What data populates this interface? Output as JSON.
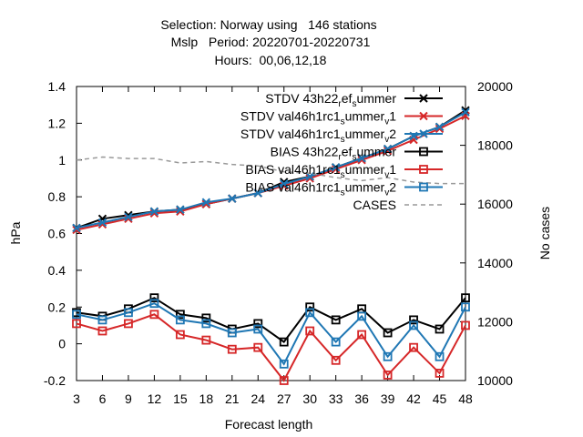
{
  "chart_data": {
    "type": "line",
    "title_lines": [
      "Selection: Norway using   146 stations",
      "Mslp   Period: 20220701-20220731",
      "Hours:  00,06,12,18"
    ],
    "xlabel": "Forecast length",
    "ylabel": "hPa",
    "y2label": "No cases",
    "x": [
      3,
      6,
      9,
      12,
      15,
      18,
      21,
      24,
      27,
      30,
      33,
      36,
      39,
      42,
      45,
      48
    ],
    "ylim": [
      -0.2,
      1.4
    ],
    "yticks": [
      "-0.2",
      "0",
      "0.2",
      "0.4",
      "0.6",
      "0.8",
      "1",
      "1.2",
      "1.4"
    ],
    "y2lim": [
      10000,
      20000
    ],
    "y2ticks": [
      "10000",
      "12000",
      "14000",
      "16000",
      "18000",
      "20000"
    ],
    "legend_position": "top-right",
    "series": [
      {
        "name": "STDV 43h22_ref_summer",
        "label_base": "STDV 43h22",
        "label_parts": [
          [
            "r",
            "sub"
          ],
          [
            "ef",
            "base"
          ],
          [
            "s",
            "sub"
          ],
          [
            "ummer",
            "base"
          ]
        ],
        "color": "#000000",
        "marker": "x",
        "axis": "y1",
        "values": [
          0.63,
          0.68,
          0.7,
          0.72,
          0.73,
          0.76,
          0.79,
          0.82,
          0.88,
          0.91,
          0.96,
          1.01,
          1.06,
          1.13,
          1.18,
          1.27
        ]
      },
      {
        "name": "STDV val46h1rc1_summer_v1",
        "label_base": "STDV val46h1rc1",
        "label_parts": [
          [
            "s",
            "sub"
          ],
          [
            "ummer",
            "base"
          ],
          [
            "v",
            "sub"
          ],
          [
            "1",
            "base"
          ]
        ],
        "color": "#d62728",
        "marker": "x",
        "axis": "y1",
        "values": [
          0.62,
          0.65,
          0.68,
          0.71,
          0.72,
          0.76,
          0.79,
          0.82,
          0.86,
          0.9,
          0.95,
          1.0,
          1.05,
          1.11,
          1.17,
          1.24
        ]
      },
      {
        "name": "STDV val46h1rc1_summer_v2",
        "label_base": "STDV val46h1rc1",
        "label_parts": [
          [
            "s",
            "sub"
          ],
          [
            "ummer",
            "base"
          ],
          [
            "v",
            "sub"
          ],
          [
            "2",
            "base"
          ]
        ],
        "color": "#1f77b4",
        "marker": "x",
        "axis": "y1",
        "values": [
          0.63,
          0.66,
          0.69,
          0.72,
          0.73,
          0.77,
          0.79,
          0.82,
          0.87,
          0.91,
          0.96,
          1.01,
          1.06,
          1.13,
          1.18,
          1.26
        ]
      },
      {
        "name": "BIAS 43h22_ref_summer",
        "label_base": "BIAS 43h22",
        "label_parts": [
          [
            "r",
            "sub"
          ],
          [
            "ef",
            "base"
          ],
          [
            "s",
            "sub"
          ],
          [
            "ummer",
            "base"
          ]
        ],
        "color": "#000000",
        "marker": "square",
        "axis": "y1",
        "values": [
          0.17,
          0.15,
          0.19,
          0.25,
          0.16,
          0.14,
          0.08,
          0.11,
          0.01,
          0.2,
          0.13,
          0.19,
          0.06,
          0.13,
          0.08,
          0.25
        ]
      },
      {
        "name": "BIAS val46h1rc1_summer_v1",
        "label_base": "BIAS val46h1rc1",
        "label_parts": [
          [
            "s",
            "sub"
          ],
          [
            "ummer",
            "base"
          ],
          [
            "v",
            "sub"
          ],
          [
            "1",
            "base"
          ]
        ],
        "color": "#d62728",
        "marker": "square",
        "axis": "y1",
        "values": [
          0.11,
          0.07,
          0.11,
          0.16,
          0.05,
          0.02,
          -0.03,
          -0.02,
          -0.2,
          0.07,
          -0.09,
          0.05,
          -0.17,
          -0.02,
          -0.16,
          0.1
        ]
      },
      {
        "name": "BIAS val46h1rc1_summer_v2",
        "label_base": "BIAS val46h1rc1",
        "label_parts": [
          [
            "s",
            "sub"
          ],
          [
            "ummer",
            "base"
          ],
          [
            "v",
            "sub"
          ],
          [
            "2",
            "base"
          ]
        ],
        "color": "#1f77b4",
        "marker": "square",
        "axis": "y1",
        "values": [
          0.16,
          0.13,
          0.17,
          0.22,
          0.13,
          0.11,
          0.06,
          0.08,
          -0.11,
          0.17,
          0.01,
          0.15,
          -0.07,
          0.1,
          -0.07,
          0.2
        ]
      },
      {
        "name": "CASES",
        "label_base": "CASES",
        "label_parts": [],
        "color": "#999999",
        "marker": "none",
        "dashed": true,
        "axis": "y2",
        "values": [
          17500,
          17600,
          17550,
          17550,
          17400,
          17450,
          17350,
          17300,
          17100,
          17050,
          16900,
          16800,
          16900,
          16750,
          16700,
          16700
        ]
      }
    ]
  }
}
